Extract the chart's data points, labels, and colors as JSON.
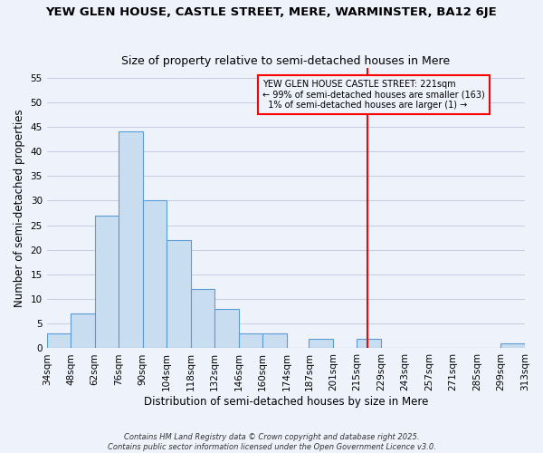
{
  "title": "YEW GLEN HOUSE, CASTLE STREET, MERE, WARMINSTER, BA12 6JE",
  "subtitle": "Size of property relative to semi-detached houses in Mere",
  "xlabel": "Distribution of semi-detached houses by size in Mere",
  "ylabel": "Number of semi-detached properties",
  "bin_edges": [
    34,
    48,
    62,
    76,
    90,
    104,
    118,
    132,
    146,
    160,
    174,
    187,
    201,
    215,
    229,
    243,
    257,
    271,
    285,
    299,
    313
  ],
  "bar_heights": [
    3,
    7,
    27,
    44,
    30,
    22,
    12,
    8,
    3,
    3,
    0,
    2,
    0,
    2,
    0,
    0,
    0,
    0,
    0,
    1
  ],
  "bar_color": "#c8ddf0",
  "bar_edge_color": "#5b9bd5",
  "vline_x": 221,
  "vline_color": "red",
  "annotation_line1": "YEW GLEN HOUSE CASTLE STREET: 221sqm",
  "annotation_line2": "← 99% of semi-detached houses are smaller (163)",
  "annotation_line3": "  1% of semi-detached houses are larger (1) →",
  "ylim": [
    0,
    57
  ],
  "yticks": [
    0,
    5,
    10,
    15,
    20,
    25,
    30,
    35,
    40,
    45,
    50,
    55
  ],
  "footer_line1": "Contains HM Land Registry data © Crown copyright and database right 2025.",
  "footer_line2": "Contains public sector information licensed under the Open Government Licence v3.0.",
  "background_color": "#eef2fb",
  "grid_color": "#c5cce0",
  "title_fontsize": 9.5,
  "subtitle_fontsize": 9,
  "tick_fontsize": 7.5,
  "label_fontsize": 8.5
}
